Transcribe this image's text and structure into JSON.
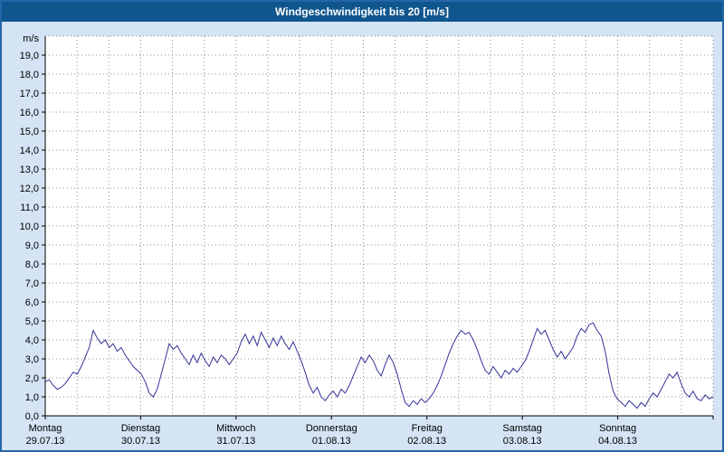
{
  "window": {
    "title": "Windgeschwindigkeit bis 20 [m/s]"
  },
  "colors": {
    "page_background": "#d4e4f4",
    "window_border": "#2565a8",
    "titlebar_background": "#10568e",
    "title_text": "#ffffff",
    "plot_background": "#ffffff",
    "grid": "#8c8c8c",
    "axis": "#000000",
    "line": "#333399"
  },
  "chart_data": {
    "type": "line",
    "title": "Windgeschwindigkeit bis 20 [m/s]",
    "unit_label": "m/s",
    "xlabel": "",
    "ylabel": "m/s",
    "ylim": [
      0,
      20
    ],
    "y_tick_step": 1,
    "y_tick_labels": [
      "0,0",
      "1,0",
      "2,0",
      "3,0",
      "4,0",
      "5,0",
      "6,0",
      "7,0",
      "8,0",
      "9,0",
      "10,0",
      "11,0",
      "12,0",
      "13,0",
      "14,0",
      "15,0",
      "16,0",
      "17,0",
      "18,0",
      "19,0"
    ],
    "grid": "dotted, horizontal every 1 m/s, vertical every 8 hours",
    "legend_position": "none",
    "categories": [
      {
        "day": "Montag",
        "date": "29.07.13"
      },
      {
        "day": "Dienstag",
        "date": "30.07.13"
      },
      {
        "day": "Mittwoch",
        "date": "31.07.13"
      },
      {
        "day": "Donnerstag",
        "date": "01.08.13"
      },
      {
        "day": "Freitag",
        "date": "02.08.13"
      },
      {
        "day": "Samstag",
        "date": "03.08.13"
      },
      {
        "day": "Sonntag",
        "date": "04.08.13"
      }
    ],
    "sampling": "hourly, 24 values per day",
    "series": [
      {
        "name": "Windgeschwindigkeit",
        "color": "#333399",
        "values": [
          1.8,
          1.9,
          1.6,
          1.4,
          1.5,
          1.7,
          2.0,
          2.3,
          2.2,
          2.6,
          3.1,
          3.6,
          4.5,
          4.1,
          3.8,
          4.0,
          3.6,
          3.8,
          3.4,
          3.6,
          3.2,
          2.9,
          2.6,
          2.4,
          2.2,
          1.8,
          1.2,
          1.0,
          1.4,
          2.2,
          3.0,
          3.8,
          3.5,
          3.7,
          3.3,
          3.0,
          2.7,
          3.2,
          2.8,
          3.3,
          2.9,
          2.6,
          3.1,
          2.8,
          3.2,
          3.0,
          2.7,
          3.0,
          3.3,
          3.9,
          4.3,
          3.8,
          4.2,
          3.7,
          4.4,
          4.0,
          3.6,
          4.1,
          3.7,
          4.2,
          3.8,
          3.5,
          3.9,
          3.4,
          2.9,
          2.3,
          1.6,
          1.2,
          1.5,
          1.0,
          0.8,
          1.1,
          1.3,
          1.0,
          1.4,
          1.2,
          1.6,
          2.1,
          2.6,
          3.1,
          2.8,
          3.2,
          2.9,
          2.4,
          2.1,
          2.7,
          3.2,
          2.8,
          2.2,
          1.4,
          0.7,
          0.5,
          0.8,
          0.6,
          0.9,
          0.7,
          0.9,
          1.2,
          1.6,
          2.1,
          2.7,
          3.3,
          3.8,
          4.2,
          4.5,
          4.3,
          4.4,
          4.0,
          3.5,
          2.9,
          2.4,
          2.2,
          2.6,
          2.3,
          2.0,
          2.4,
          2.2,
          2.5,
          2.3,
          2.6,
          2.9,
          3.4,
          4.0,
          4.6,
          4.3,
          4.5,
          4.0,
          3.5,
          3.1,
          3.4,
          3.0,
          3.3,
          3.6,
          4.2,
          4.6,
          4.4,
          4.8,
          4.9,
          4.5,
          4.2,
          3.4,
          2.2,
          1.3,
          0.9,
          0.7,
          0.5,
          0.8,
          0.6,
          0.4,
          0.7,
          0.5,
          0.9,
          1.2,
          1.0,
          1.4,
          1.8,
          2.2,
          2.0,
          2.3,
          1.7,
          1.2,
          1.0,
          1.3,
          0.9,
          0.8,
          1.1,
          0.9,
          1.0
        ]
      }
    ]
  }
}
